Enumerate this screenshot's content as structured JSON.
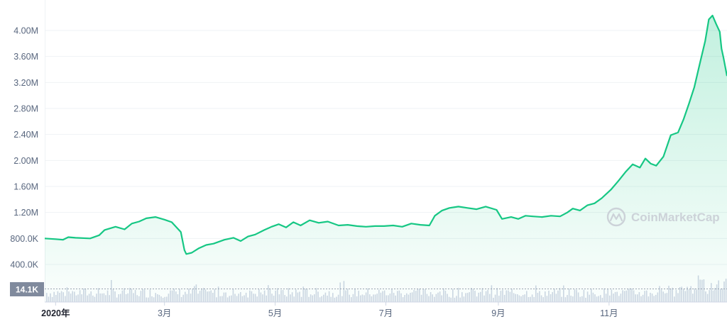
{
  "chart_data": {
    "type": "area",
    "title": "",
    "xlabel": "",
    "ylabel": "",
    "ylim": [
      400000,
      4300000
    ],
    "y_ticks": [
      "400.0K",
      "800.0K",
      "1.20M",
      "1.60M",
      "2.00M",
      "2.40M",
      "2.80M",
      "3.20M",
      "3.60M",
      "4.00M"
    ],
    "y_tick_values": [
      400000,
      800000,
      1200000,
      1600000,
      2000000,
      2400000,
      2800000,
      3200000,
      3600000,
      4000000
    ],
    "x_ticks": [
      "2020年",
      "3月",
      "5月",
      "7月",
      "9月",
      "11月"
    ],
    "x_tick_dates": [
      "2020-01-01",
      "2020-03-01",
      "2020-05-01",
      "2020-07-01",
      "2020-09-01",
      "2020-11-01"
    ],
    "grid": true,
    "line_color": "#16c784",
    "series": [
      {
        "x": [
          "2019-12-26",
          "2020-01-01",
          "2020-01-05",
          "2020-01-08",
          "2020-01-12",
          "2020-01-20",
          "2020-01-25",
          "2020-01-28",
          "2020-02-03",
          "2020-02-08",
          "2020-02-12",
          "2020-02-16",
          "2020-02-20",
          "2020-02-25",
          "2020-03-01",
          "2020-03-05",
          "2020-03-08",
          "2020-03-10",
          "2020-03-12",
          "2020-03-13",
          "2020-03-16",
          "2020-03-20",
          "2020-03-24",
          "2020-03-28",
          "2020-04-03",
          "2020-04-08",
          "2020-04-12",
          "2020-04-16",
          "2020-04-20",
          "2020-04-25",
          "2020-04-29",
          "2020-05-03",
          "2020-05-07",
          "2020-05-11",
          "2020-05-15",
          "2020-05-20",
          "2020-05-25",
          "2020-05-30",
          "2020-06-05",
          "2020-06-10",
          "2020-06-15",
          "2020-06-20",
          "2020-06-25",
          "2020-06-30",
          "2020-07-05",
          "2020-07-10",
          "2020-07-15",
          "2020-07-20",
          "2020-07-25",
          "2020-07-28",
          "2020-08-01",
          "2020-08-05",
          "2020-08-10",
          "2020-08-15",
          "2020-08-20",
          "2020-08-25",
          "2020-08-31",
          "2020-09-03",
          "2020-09-08",
          "2020-09-12",
          "2020-09-16",
          "2020-09-20",
          "2020-09-25",
          "2020-09-30",
          "2020-10-05",
          "2020-10-09",
          "2020-10-12",
          "2020-10-16",
          "2020-10-20",
          "2020-10-24",
          "2020-10-28",
          "2020-11-02",
          "2020-11-06",
          "2020-11-10",
          "2020-11-14",
          "2020-11-18",
          "2020-11-21",
          "2020-11-24",
          "2020-11-27",
          "2020-12-01",
          "2020-12-05",
          "2020-12-09",
          "2020-12-12",
          "2020-12-15",
          "2020-12-18",
          "2020-12-21",
          "2020-12-24",
          "2020-12-26",
          "2020-12-28",
          "2020-12-30",
          "2021-01-01",
          "2021-01-02",
          "2021-01-03",
          "2021-01-05"
        ],
        "y": [
          800000,
          790000,
          780000,
          820000,
          810000,
          800000,
          850000,
          930000,
          980000,
          940000,
          1030000,
          1060000,
          1110000,
          1130000,
          1090000,
          1050000,
          960000,
          900000,
          620000,
          560000,
          580000,
          650000,
          700000,
          720000,
          780000,
          810000,
          760000,
          830000,
          860000,
          930000,
          980000,
          1020000,
          970000,
          1050000,
          1000000,
          1080000,
          1040000,
          1060000,
          1000000,
          1010000,
          990000,
          980000,
          990000,
          990000,
          1000000,
          980000,
          1030000,
          1010000,
          1000000,
          1150000,
          1230000,
          1270000,
          1290000,
          1270000,
          1250000,
          1290000,
          1240000,
          1100000,
          1130000,
          1100000,
          1150000,
          1140000,
          1130000,
          1150000,
          1140000,
          1200000,
          1260000,
          1230000,
          1310000,
          1340000,
          1420000,
          1550000,
          1680000,
          1820000,
          1940000,
          1890000,
          2030000,
          1950000,
          1920000,
          2060000,
          2390000,
          2430000,
          2630000,
          2870000,
          3130000,
          3490000,
          3840000,
          4170000,
          4230000,
          4100000,
          3980000,
          3720000,
          3590000,
          3300000
        ]
      }
    ],
    "volume_label": "14.1K"
  },
  "watermark": {
    "text": "CoinMarketCap"
  }
}
